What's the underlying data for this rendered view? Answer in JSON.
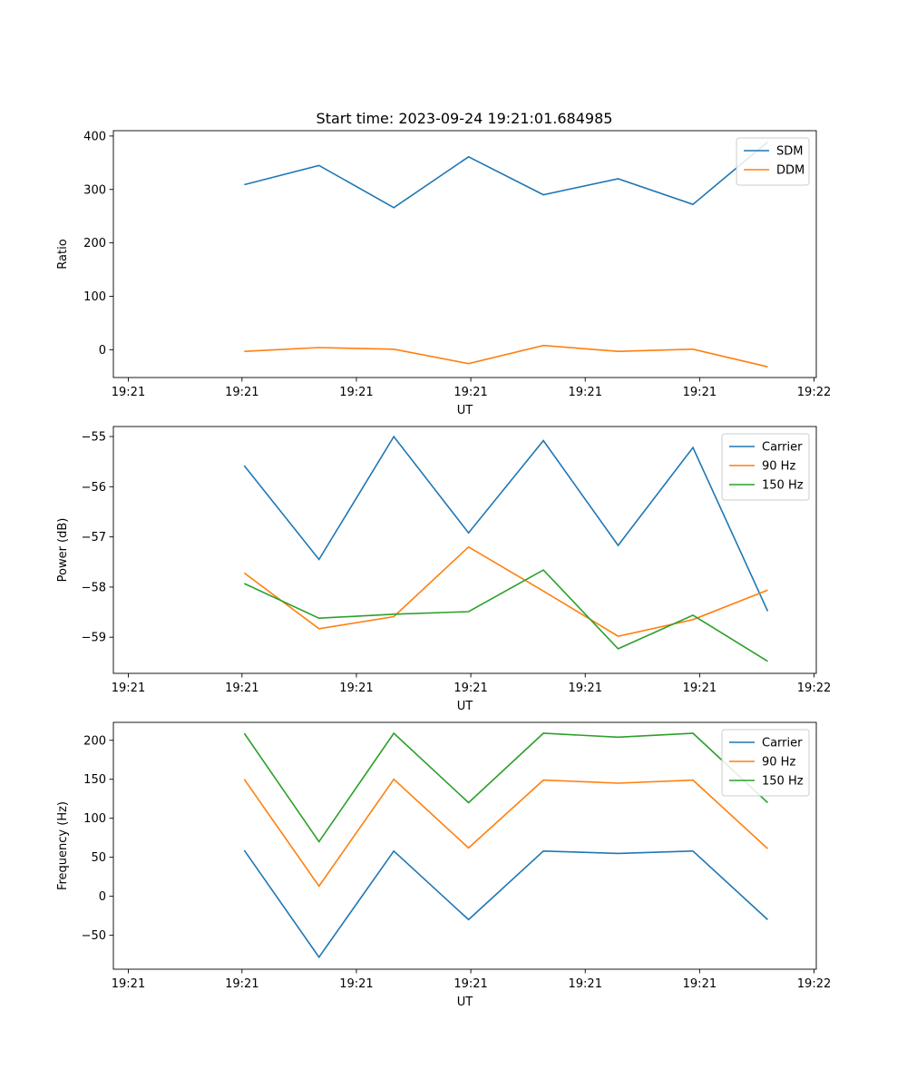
{
  "figure_title": "Start time: 2023-09-24 19:21:01.684985",
  "colors": {
    "blue": "#1f77b4",
    "orange": "#ff7f0e",
    "green": "#2ca02c"
  },
  "chart_data": [
    {
      "type": "line",
      "title": "Start time: 2023-09-24 19:21:01.684985",
      "xlabel": "UT",
      "ylabel": "Ratio",
      "x": [
        1,
        2,
        3,
        4,
        5,
        6,
        7,
        8
      ],
      "xlim": [
        -0.75,
        8.65
      ],
      "xticks": [
        -0.55,
        0.97,
        2.5,
        4.03,
        5.56,
        7.09,
        8.62
      ],
      "xtick_labels": [
        "19:21",
        "19:21",
        "19:21",
        "19:21",
        "19:21",
        "19:21",
        "19:22"
      ],
      "ylim": [
        -52,
        410
      ],
      "yticks": [
        0,
        100,
        200,
        300,
        400
      ],
      "ytick_labels": [
        "0",
        "100",
        "200",
        "300",
        "400"
      ],
      "legend_position": "upper right",
      "series": [
        {
          "name": "SDM",
          "color": "#1f77b4",
          "values": [
            309,
            345,
            266,
            361,
            290,
            320,
            272,
            389
          ]
        },
        {
          "name": "DDM",
          "color": "#ff7f0e",
          "values": [
            -3,
            4,
            1,
            -26,
            8,
            -3,
            1,
            -32
          ]
        }
      ]
    },
    {
      "type": "line",
      "title": "",
      "xlabel": "UT",
      "ylabel": "Power (dB)",
      "x": [
        1,
        2,
        3,
        4,
        5,
        6,
        7,
        8
      ],
      "xlim": [
        -0.75,
        8.65
      ],
      "xticks": [
        -0.55,
        0.97,
        2.5,
        4.03,
        5.56,
        7.09,
        8.62
      ],
      "xtick_labels": [
        "19:21",
        "19:21",
        "19:21",
        "19:21",
        "19:21",
        "19:21",
        "19:22"
      ],
      "ylim": [
        -59.72,
        -54.8
      ],
      "yticks": [
        -59,
        -58,
        -57,
        -56,
        -55
      ],
      "ytick_labels": [
        "−59",
        "−58",
        "−57",
        "−56",
        "−55"
      ],
      "legend_position": "upper right",
      "series": [
        {
          "name": "Carrier",
          "color": "#1f77b4",
          "values": [
            -55.58,
            -57.45,
            -55.0,
            -56.92,
            -55.08,
            -57.17,
            -55.22,
            -58.48
          ]
        },
        {
          "name": "90 Hz",
          "color": "#ff7f0e",
          "values": [
            -57.72,
            -58.83,
            -58.59,
            -57.2,
            -58.08,
            -58.98,
            -58.65,
            -58.06
          ]
        },
        {
          "name": "150 Hz",
          "color": "#2ca02c",
          "values": [
            -57.93,
            -58.62,
            -58.54,
            -58.49,
            -57.66,
            -59.23,
            -58.56,
            -59.48
          ]
        }
      ]
    },
    {
      "type": "line",
      "title": "",
      "xlabel": "UT",
      "ylabel": "Frequency (Hz)",
      "x": [
        1,
        2,
        3,
        4,
        5,
        6,
        7,
        8
      ],
      "xlim": [
        -0.75,
        8.65
      ],
      "xticks": [
        -0.55,
        0.97,
        2.5,
        4.03,
        5.56,
        7.09,
        8.62
      ],
      "xtick_labels": [
        "19:21",
        "19:21",
        "19:21",
        "19:21",
        "19:21",
        "19:21",
        "19:22"
      ],
      "ylim": [
        -93.5,
        223
      ],
      "yticks": [
        -50,
        0,
        50,
        100,
        150,
        200
      ],
      "ytick_labels": [
        "−50",
        "0",
        "50",
        "100",
        "150",
        "200"
      ],
      "legend_position": "upper right",
      "series": [
        {
          "name": "Carrier",
          "color": "#1f77b4",
          "values": [
            59,
            -78,
            58,
            -30,
            58,
            55,
            58,
            -30
          ]
        },
        {
          "name": "90 Hz",
          "color": "#ff7f0e",
          "values": [
            150,
            13,
            150,
            62,
            149,
            145,
            149,
            61
          ]
        },
        {
          "name": "150 Hz",
          "color": "#2ca02c",
          "values": [
            209,
            70,
            209,
            120,
            209,
            204,
            209,
            120
          ]
        }
      ]
    }
  ]
}
